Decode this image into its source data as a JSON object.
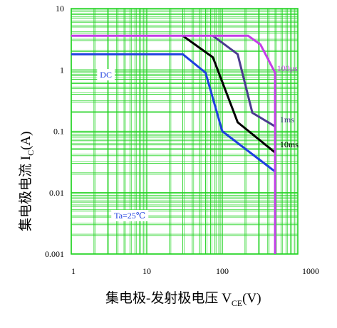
{
  "chart_data": {
    "type": "line",
    "title": "",
    "xscale": "log",
    "yscale": "log",
    "xlim": [
      1,
      1000
    ],
    "ylim": [
      0.001,
      10
    ],
    "xticks": [
      "1",
      "10",
      "100",
      "1000"
    ],
    "yticks": [
      "0.001",
      "0.01",
      "0.1",
      "1",
      "10"
    ],
    "xlabel": {
      "main": "集电极-发射极电压  V",
      "sub": "CE",
      "tail": "(V)"
    },
    "ylabel": {
      "main": "集电极电流   I",
      "sub": "C",
      "tail": "(A)"
    },
    "grid": true,
    "grid_color": "#22d322",
    "series": [
      {
        "name": "DC",
        "color": "#1f3fe0",
        "x": [
          1,
          30,
          60,
          100,
          500
        ],
        "y": [
          1.8,
          1.8,
          0.9,
          0.1,
          0.022
        ]
      },
      {
        "name": "10ms",
        "color": "#000000",
        "x": [
          30,
          75,
          160,
          500
        ],
        "y": [
          3.6,
          1.6,
          0.14,
          0.045
        ]
      },
      {
        "name": "1ms",
        "color": "#4b3a8f",
        "x": [
          75,
          160,
          250,
          500
        ],
        "y": [
          3.6,
          1.8,
          0.2,
          0.12
        ]
      },
      {
        "name": "100μs",
        "color": "#c43ee8",
        "x": [
          1,
          220,
          320,
          500,
          500
        ],
        "y": [
          3.6,
          3.6,
          2.6,
          0.9,
          0.001
        ]
      }
    ],
    "annotations": [
      {
        "text": "DC",
        "x": 2.4,
        "y": 0.75,
        "color": "#1f3fe0",
        "boxed": true
      },
      {
        "text": "100μs",
        "x": 530,
        "y": 0.95,
        "color": "#c43ee8",
        "boxed": false
      },
      {
        "text": "1ms",
        "x": 580,
        "y": 0.14,
        "color": "#4b3a8f",
        "boxed": false
      },
      {
        "text": "10ms",
        "x": 580,
        "y": 0.055,
        "color": "#000000",
        "boxed": false
      },
      {
        "text": "Ta=25℃",
        "x": 3.7,
        "y": 0.0038,
        "color": "#1f3fe0",
        "boxed": true
      }
    ]
  }
}
